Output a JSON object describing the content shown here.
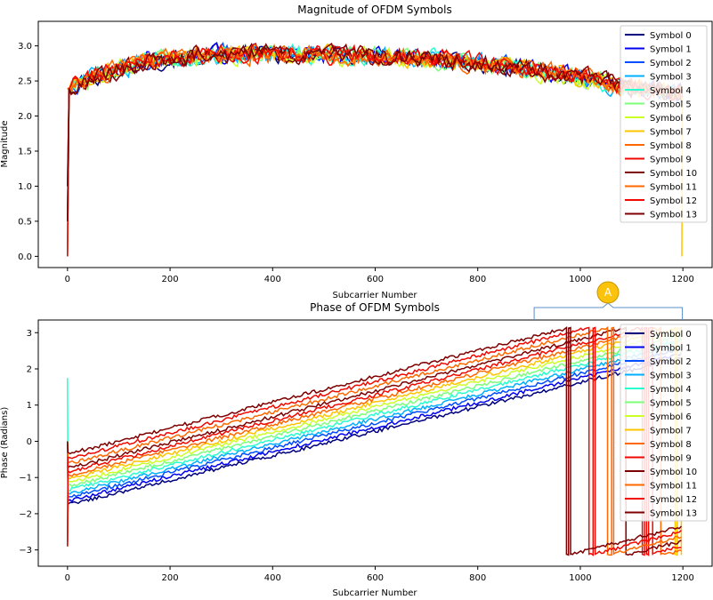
{
  "chart_data": [
    {
      "type": "line",
      "title": "Magnitude of OFDM Symbols",
      "xlabel": "Subcarrier Number",
      "ylabel": "Magnitude",
      "xlim": [
        -57,
        1257
      ],
      "ylim": [
        -0.16,
        3.35
      ],
      "xticks": [
        0,
        200,
        400,
        600,
        800,
        1000,
        1200
      ],
      "yticks": [
        0.0,
        0.5,
        1.0,
        1.5,
        2.0,
        2.5,
        3.0
      ],
      "ytick_labels": [
        "0.0",
        "0.5",
        "1.0",
        "1.5",
        "2.0",
        "2.5",
        "3.0"
      ],
      "legend_position": "upper right",
      "series_shape": {
        "x_range": [
          0,
          1199
        ],
        "start_drop": {
          "x": 0,
          "y_values": [
            0.0,
            0.5,
            1.0,
            2.4
          ]
        },
        "trend_points": [
          [
            3,
            2.4
          ],
          [
            50,
            2.55
          ],
          [
            150,
            2.78
          ],
          [
            300,
            2.88
          ],
          [
            500,
            2.88
          ],
          [
            700,
            2.82
          ],
          [
            850,
            2.72
          ],
          [
            1000,
            2.55
          ],
          [
            1100,
            2.4
          ],
          [
            1199,
            2.32
          ]
        ],
        "noise_amplitude": 0.12,
        "spikes": [
          {
            "series": 7,
            "x": 1198,
            "y": 0.0
          }
        ]
      }
    },
    {
      "type": "line",
      "title": "Phase of OFDM Symbols",
      "xlabel": "Subcarrier Number",
      "ylabel": "Phase (Radians)",
      "xlim": [
        -57,
        1257
      ],
      "ylim": [
        -3.45,
        3.35
      ],
      "xticks": [
        0,
        200,
        400,
        600,
        800,
        1000,
        1200
      ],
      "yticks": [
        -3,
        -2,
        -1,
        0,
        1,
        2,
        3
      ],
      "ytick_labels": [
        "−3",
        "−2",
        "−1",
        "0",
        "1",
        "2",
        "3"
      ],
      "legend_position": "upper right",
      "series_shape": {
        "x_range": [
          0,
          1199
        ],
        "start_values": [
          -1.75,
          -1.65,
          -1.55,
          -1.45,
          -1.35,
          -1.25,
          -1.15,
          -1.05,
          -0.95,
          -0.85,
          -0.75,
          -0.62,
          -0.48,
          -0.35
        ],
        "end_values": [
          2.3,
          2.42,
          2.55,
          2.67,
          2.8,
          2.92,
          3.05,
          -3.12,
          -3.0,
          -2.88,
          -2.75,
          -2.62,
          -2.5,
          -2.35
        ],
        "wrap_at": 3.14159,
        "noise_amplitude": 0.05
      }
    }
  ],
  "series_names": [
    "Symbol 0",
    "Symbol 1",
    "Symbol 2",
    "Symbol 3",
    "Symbol 4",
    "Symbol 5",
    "Symbol 6",
    "Symbol 7",
    "Symbol 8",
    "Symbol 9",
    "Symbol 10",
    "Symbol 11",
    "Symbol 12",
    "Symbol 13"
  ],
  "series_colors": [
    "#00007f",
    "#0000f1",
    "#004cff",
    "#00b0ff",
    "#29ffce",
    "#7dff7a",
    "#cdff29",
    "#ffc400",
    "#ff6800",
    "#f10800",
    "#7f0000",
    "#ff6800",
    "#f10800",
    "#7f0000"
  ],
  "callout": {
    "label": "A",
    "color": "#fcc30d",
    "border": "#c99500",
    "bracket_color": "#5b8fc9",
    "x_span": [
      910,
      1199
    ]
  }
}
